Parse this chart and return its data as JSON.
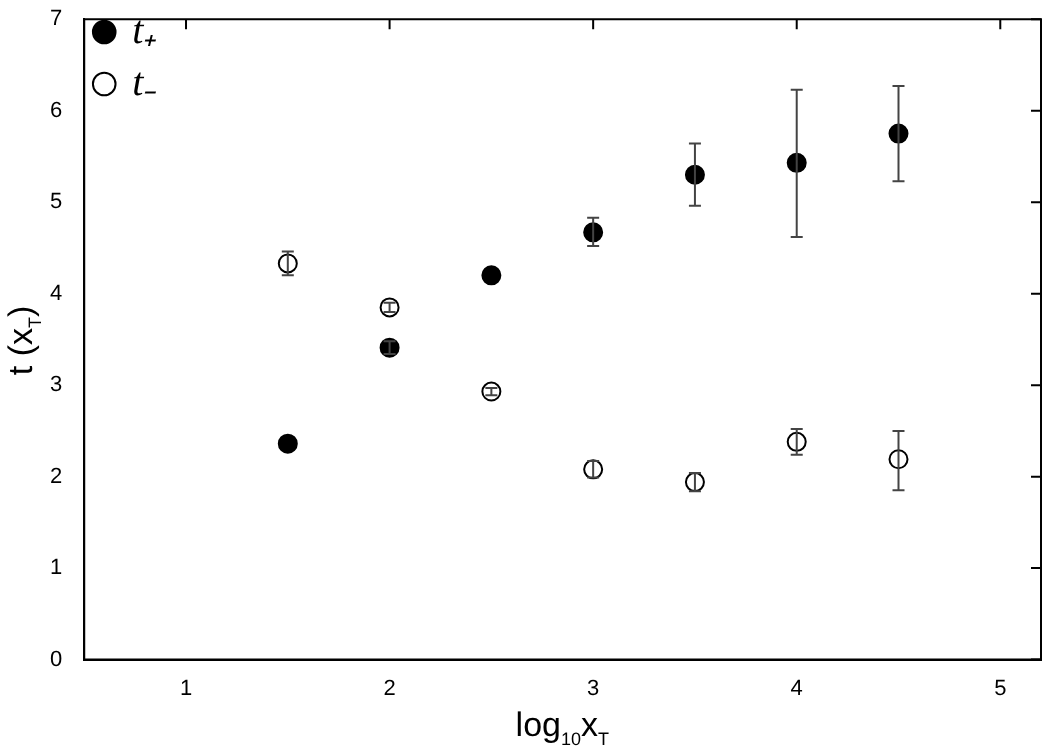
{
  "chart_data": {
    "type": "scatter",
    "xlabel": "log$_{10}$x$_{T}$",
    "ylabel": "t (x$_{T}$)",
    "xlim": [
      0.5,
      5.2
    ],
    "xticks": [
      1,
      2,
      3,
      4,
      5
    ],
    "ylim": [
      0,
      7
    ],
    "yticks": [
      0,
      1,
      2,
      3,
      4,
      5,
      6,
      7
    ],
    "grid": false,
    "legend": "top left",
    "marker": "circle",
    "series": [
      {
        "name": "t₊",
        "color": "#000000",
        "x": [
          1.5,
          2,
          2.5,
          3,
          3.5,
          4,
          4.5
        ],
        "values": [
          2.36,
          3.41,
          4.2,
          4.67,
          5.3,
          5.43,
          5.75
        ],
        "errors": [
          null,
          0.07,
          null,
          [
            4.52,
            4.83
          ],
          [
            4.96,
            5.64
          ],
          [
            4.62,
            6.23
          ],
          [
            5.23,
            6.27
          ]
        ]
      },
      {
        "name": "t₋",
        "color": "#ffffff",
        "x": [
          1.5,
          2,
          2.5,
          3,
          3.5,
          4,
          4.5
        ],
        "values": [
          4.33,
          3.85,
          2.93,
          2.08,
          1.94,
          2.38,
          2.19
        ],
        "errors": [
          0.13,
          0.05,
          0.04,
          0.09,
          0.1,
          0.14,
          [
            1.85,
            2.5
          ]
        ]
      }
    ]
  }
}
